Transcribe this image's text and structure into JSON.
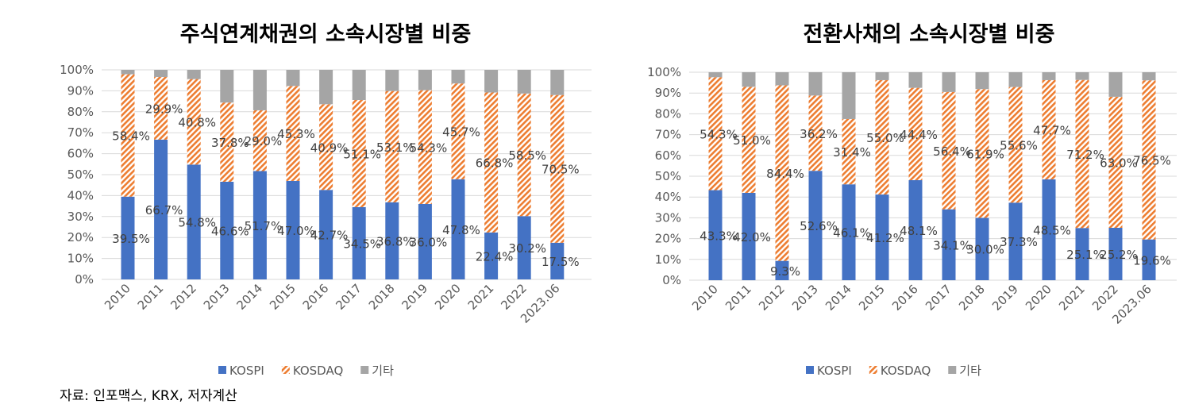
{
  "source_note": "자료: 인포맥스, KRX, 저자계산",
  "colors": {
    "KOSPI": "#4472C4",
    "KOSDAQ": "#ED7D31",
    "기타": "#A5A5A5",
    "grid": "#D9D9D9"
  },
  "chart_data": [
    {
      "type": "bar",
      "stacked": true,
      "percent_stacked": true,
      "title": "주식연계채권의 소속시장별 비중",
      "categories": [
        "2010",
        "2011",
        "2012",
        "2013",
        "2014",
        "2015",
        "2016",
        "2017",
        "2018",
        "2019",
        "2020",
        "2021",
        "2022",
        "2023.06"
      ],
      "yticks": [
        "0%",
        "10%",
        "20%",
        "30%",
        "40%",
        "50%",
        "60%",
        "70%",
        "80%",
        "90%",
        "100%"
      ],
      "ylim": [
        0,
        100
      ],
      "grid": true,
      "legend": "bottom",
      "series": [
        {
          "name": "KOSPI",
          "pattern": "solid",
          "values": [
            39.5,
            66.7,
            54.8,
            46.6,
            51.7,
            47.0,
            42.7,
            34.5,
            36.8,
            36.0,
            47.8,
            22.4,
            30.2,
            17.5
          ]
        },
        {
          "name": "KOSDAQ",
          "pattern": "diagonal-hatch",
          "values": [
            58.4,
            29.9,
            40.8,
            37.8,
            29.0,
            45.3,
            40.9,
            51.1,
            53.1,
            54.3,
            45.7,
            66.8,
            58.5,
            70.5
          ]
        },
        {
          "name": "기타",
          "pattern": "solid",
          "values": [
            2.1,
            3.4,
            4.4,
            15.6,
            19.3,
            7.7,
            16.4,
            14.4,
            10.1,
            9.7,
            6.5,
            10.8,
            11.3,
            12.0
          ]
        }
      ],
      "data_labels": [
        "KOSPI",
        "KOSDAQ"
      ]
    },
    {
      "type": "bar",
      "stacked": true,
      "percent_stacked": true,
      "title": "전환사채의 소속시장별 비중",
      "categories": [
        "2010",
        "2011",
        "2012",
        "2013",
        "2014",
        "2015",
        "2016",
        "2017",
        "2018",
        "2019",
        "2020",
        "2021",
        "2022",
        "2023.06"
      ],
      "yticks": [
        "0%",
        "10%",
        "20%",
        "30%",
        "40%",
        "50%",
        "60%",
        "70%",
        "80%",
        "90%",
        "100%"
      ],
      "ylim": [
        0,
        100
      ],
      "grid": true,
      "legend": "bottom",
      "series": [
        {
          "name": "KOSPI",
          "pattern": "solid",
          "values": [
            43.3,
            42.0,
            9.3,
            52.6,
            46.1,
            41.2,
            48.1,
            34.1,
            30.0,
            37.3,
            48.5,
            25.1,
            25.2,
            19.6
          ]
        },
        {
          "name": "KOSDAQ",
          "pattern": "diagonal-hatch",
          "values": [
            54.3,
            51.0,
            84.4,
            36.2,
            31.4,
            55.0,
            44.4,
            56.4,
            61.9,
            55.6,
            47.7,
            71.2,
            63.0,
            76.5
          ]
        },
        {
          "name": "기타",
          "pattern": "solid",
          "values": [
            2.4,
            7.0,
            6.3,
            11.2,
            22.5,
            3.8,
            7.5,
            9.5,
            8.1,
            7.1,
            3.8,
            3.7,
            11.8,
            3.9
          ]
        }
      ],
      "data_labels": [
        "KOSPI",
        "KOSDAQ"
      ]
    }
  ]
}
